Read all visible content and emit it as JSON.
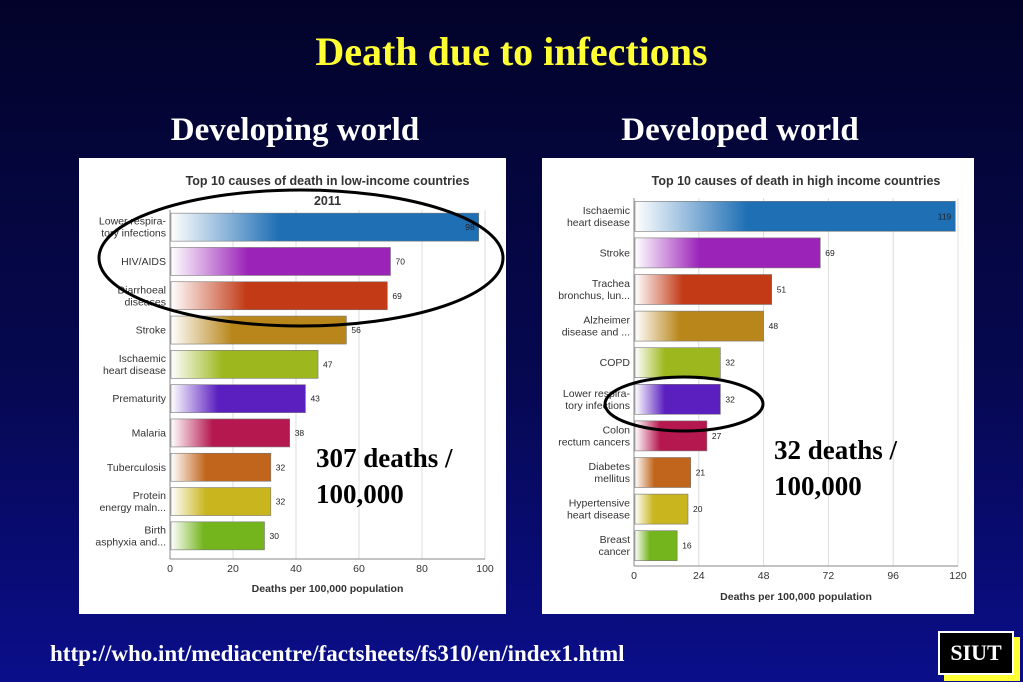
{
  "slide": {
    "title": "Death due to infections",
    "left_heading": "Developing world",
    "right_heading": "Developed world",
    "left_note_line1": "307 deaths /",
    "left_note_line2": "100,000",
    "right_note_line1": "32 deaths /",
    "right_note_line2": "100,000",
    "source_url": "http://who.int/mediacentre/factsheets/fs310/en/index1.html",
    "logo_text": "SIUT"
  },
  "chart_data": [
    {
      "type": "bar",
      "orientation": "horizontal",
      "title_lines": [
        "Top 10 causes of death in low-income countries",
        "2011"
      ],
      "xlabel": "Deaths per 100,000 population",
      "xlim": [
        0,
        100
      ],
      "xticks": [
        0,
        20,
        40,
        60,
        80,
        100
      ],
      "categories": [
        [
          "Lower respira-",
          "tory infections"
        ],
        [
          "HIV/AIDS"
        ],
        [
          "Diarrhoeal",
          "diseases"
        ],
        [
          "Stroke"
        ],
        [
          "Ischaemic",
          "heart disease"
        ],
        [
          "Prematurity"
        ],
        [
          "Malaria"
        ],
        [
          "Tuberculosis"
        ],
        [
          "Protein",
          "energy maln..."
        ],
        [
          "Birth",
          "asphyxia and..."
        ]
      ],
      "values": [
        98,
        70,
        69,
        56,
        47,
        43,
        38,
        32,
        32,
        30
      ],
      "colors": [
        "#1f6fb5",
        "#9b23b8",
        "#c23a16",
        "#b8861a",
        "#9db81e",
        "#5b1fc0",
        "#b5184f",
        "#c0651b",
        "#c9b51e",
        "#74b51e"
      ],
      "highlighted_bars": [
        0,
        1,
        2
      ]
    },
    {
      "type": "bar",
      "orientation": "horizontal",
      "title_lines": [
        "Top 10 causes of death in high income countries"
      ],
      "xlabel": "Deaths per 100,000 population",
      "xlim": [
        0,
        120
      ],
      "xticks": [
        0,
        24,
        48,
        72,
        96,
        120
      ],
      "categories": [
        [
          "Ischaemic",
          "heart disease"
        ],
        [
          "Stroke"
        ],
        [
          "Trachea",
          "bronchus, lun..."
        ],
        [
          "Alzheimer",
          "disease and ..."
        ],
        [
          "COPD"
        ],
        [
          "Lower respira-",
          "tory infections"
        ],
        [
          "Colon",
          "rectum cancers"
        ],
        [
          "Diabetes",
          "mellitus"
        ],
        [
          "Hypertensive",
          "heart disease"
        ],
        [
          "Breast",
          "cancer"
        ]
      ],
      "values": [
        119,
        69,
        51,
        48,
        32,
        32,
        27,
        21,
        20,
        16
      ],
      "colors": [
        "#1f6fb5",
        "#9b23b8",
        "#c23a16",
        "#b8861a",
        "#9db81e",
        "#5b1fc0",
        "#b5184f",
        "#c0651b",
        "#c9b51e",
        "#74b51e"
      ],
      "highlighted_bars": [
        5
      ]
    }
  ]
}
